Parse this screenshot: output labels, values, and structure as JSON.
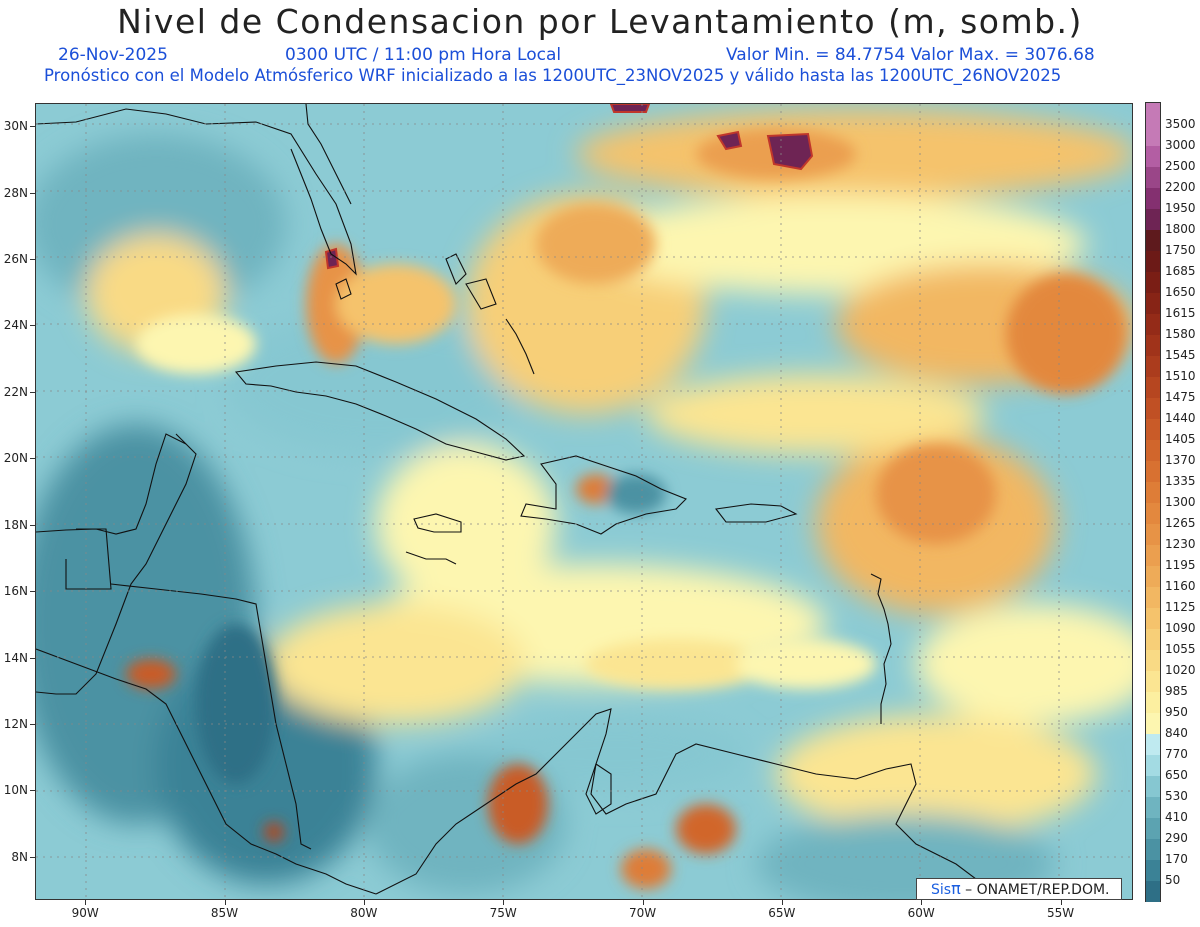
{
  "header": {
    "title": "Nivel de Condensacion por Levantamiento (m, somb.)",
    "date": "26-Nov-2025",
    "time": "0300 UTC / 11:00 pm Hora Local",
    "minmax": "Valor Min. = 84.7754   Valor Max. = 3076.68",
    "subtitle": "Pronóstico con el Modelo Atmósferico WRF inicializado a las 1200UTC_23NOV2025 y válido hasta las   1200UTC_26NOV2025"
  },
  "map": {
    "lat_labels": [
      "30N",
      "28N",
      "26N",
      "24N",
      "22N",
      "20N",
      "18N",
      "16N",
      "14N",
      "12N",
      "10N",
      "8N"
    ],
    "lon_labels": [
      "90W",
      "85W",
      "80W",
      "75W",
      "70W",
      "65W",
      "60W",
      "55W"
    ],
    "lat_range": [
      6.7,
      30.7
    ],
    "lon_range": [
      -91.8,
      -52.4
    ],
    "credit_sis": "Sis",
    "credit_pi": "π",
    "credit_rest": "– ONAMET/REP.DOM."
  },
  "legend": {
    "levels": [
      "50",
      "170",
      "290",
      "410",
      "530",
      "650",
      "770",
      "840",
      "950",
      "985",
      "1020",
      "1055",
      "1090",
      "1125",
      "1160",
      "1195",
      "1230",
      "1265",
      "1300",
      "1335",
      "1370",
      "1405",
      "1440",
      "1475",
      "1510",
      "1545",
      "1580",
      "1615",
      "1650",
      "1685",
      "1750",
      "1800",
      "1950",
      "2200",
      "2500",
      "3000",
      "3500"
    ],
    "colors": [
      "#2e6f86",
      "#3b8296",
      "#4b92a3",
      "#5ca3b1",
      "#6fb4c0",
      "#86c7d1",
      "#a3dbe3",
      "#bfeaf0",
      "#fdf6b0",
      "#fcefa0",
      "#fbe592",
      "#f9da85",
      "#f7cf78",
      "#f5c36c",
      "#f2b762",
      "#eeab58",
      "#eb9f4f",
      "#e79346",
      "#e3883e",
      "#de7d37",
      "#d87131",
      "#d1662c",
      "#c95b28",
      "#c05024",
      "#b64620",
      "#ab3c1d",
      "#a0331a",
      "#942b18",
      "#872416",
      "#7a1e15",
      "#6c1a17",
      "#5e1a1d",
      "#6e2454",
      "#843070",
      "#9a4688",
      "#b35ea3",
      "#c57ab6"
    ],
    "top_color": "#c57ab6"
  }
}
